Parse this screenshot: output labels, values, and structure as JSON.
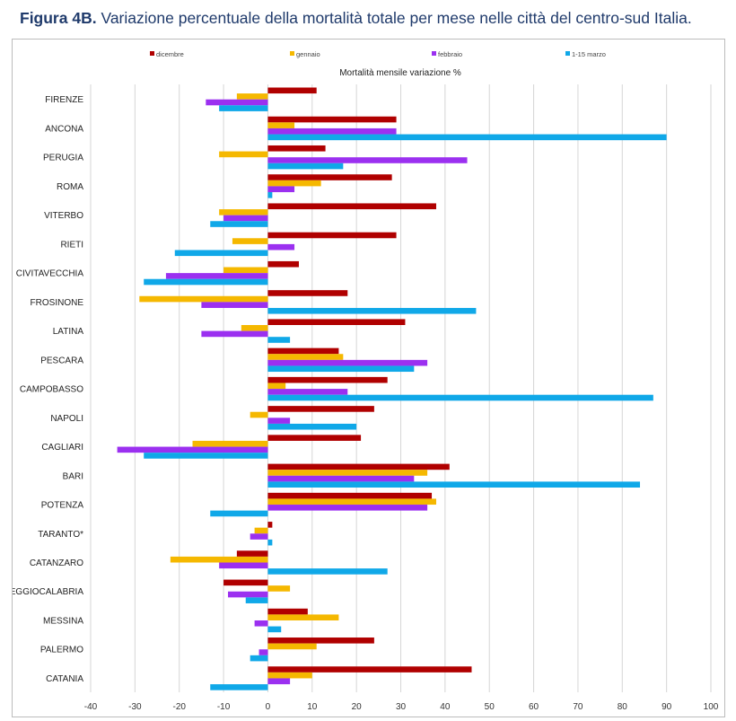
{
  "figure": {
    "label": "Figura 4B.",
    "caption": "Variazione percentuale della mortalità totale per mese nelle città del centro-sud Italia."
  },
  "chart_data": {
    "type": "bar",
    "orientation": "horizontal",
    "title": "Mortalità mensile variazione %",
    "xlabel": "",
    "ylabel": "",
    "xlim": [
      -40,
      100
    ],
    "xticks": [
      -40,
      -30,
      -20,
      -10,
      0,
      10,
      20,
      30,
      40,
      50,
      60,
      70,
      80,
      90,
      100
    ],
    "grid": "vertical",
    "legend_position": "top",
    "categories": [
      "FIRENZE",
      "ANCONA",
      "PERUGIA",
      "ROMA",
      "VITERBO",
      "RIETI",
      "CIVITAVECCHIA",
      "FROSINONE",
      "LATINA",
      "PESCARA",
      "CAMPOBASSO",
      "NAPOLI",
      "CAGLIARI",
      "BARI",
      "POTENZA",
      "TARANTO*",
      "CATANZARO",
      "REGGIOCALABRIA",
      "MESSINA",
      "PALERMO",
      "CATANIA"
    ],
    "series": [
      {
        "name": "dicembre",
        "color": "#b00000",
        "values": [
          11,
          29,
          13,
          28,
          38,
          29,
          7,
          18,
          31,
          16,
          27,
          24,
          21,
          41,
          37,
          1,
          -7,
          -10,
          9,
          24,
          46
        ]
      },
      {
        "name": "gennaio",
        "color": "#f5b800",
        "values": [
          -7,
          6,
          -11,
          12,
          -11,
          -8,
          -10,
          -29,
          -6,
          17,
          4,
          -4,
          -17,
          36,
          38,
          -3,
          -22,
          5,
          16,
          11,
          10
        ]
      },
      {
        "name": "febbraio",
        "color": "#9b30f0",
        "values": [
          -14,
          29,
          45,
          6,
          -10,
          6,
          -23,
          -15,
          -15,
          36,
          18,
          5,
          -34,
          33,
          36,
          -4,
          -11,
          -9,
          -3,
          -2,
          5
        ]
      },
      {
        "name": "1-15 marzo",
        "color": "#10a8e8",
        "values": [
          -11,
          90,
          17,
          1,
          -13,
          -21,
          -28,
          47,
          5,
          33,
          87,
          20,
          -28,
          84,
          -13,
          1,
          27,
          -5,
          3,
          -4,
          -13
        ]
      }
    ]
  }
}
